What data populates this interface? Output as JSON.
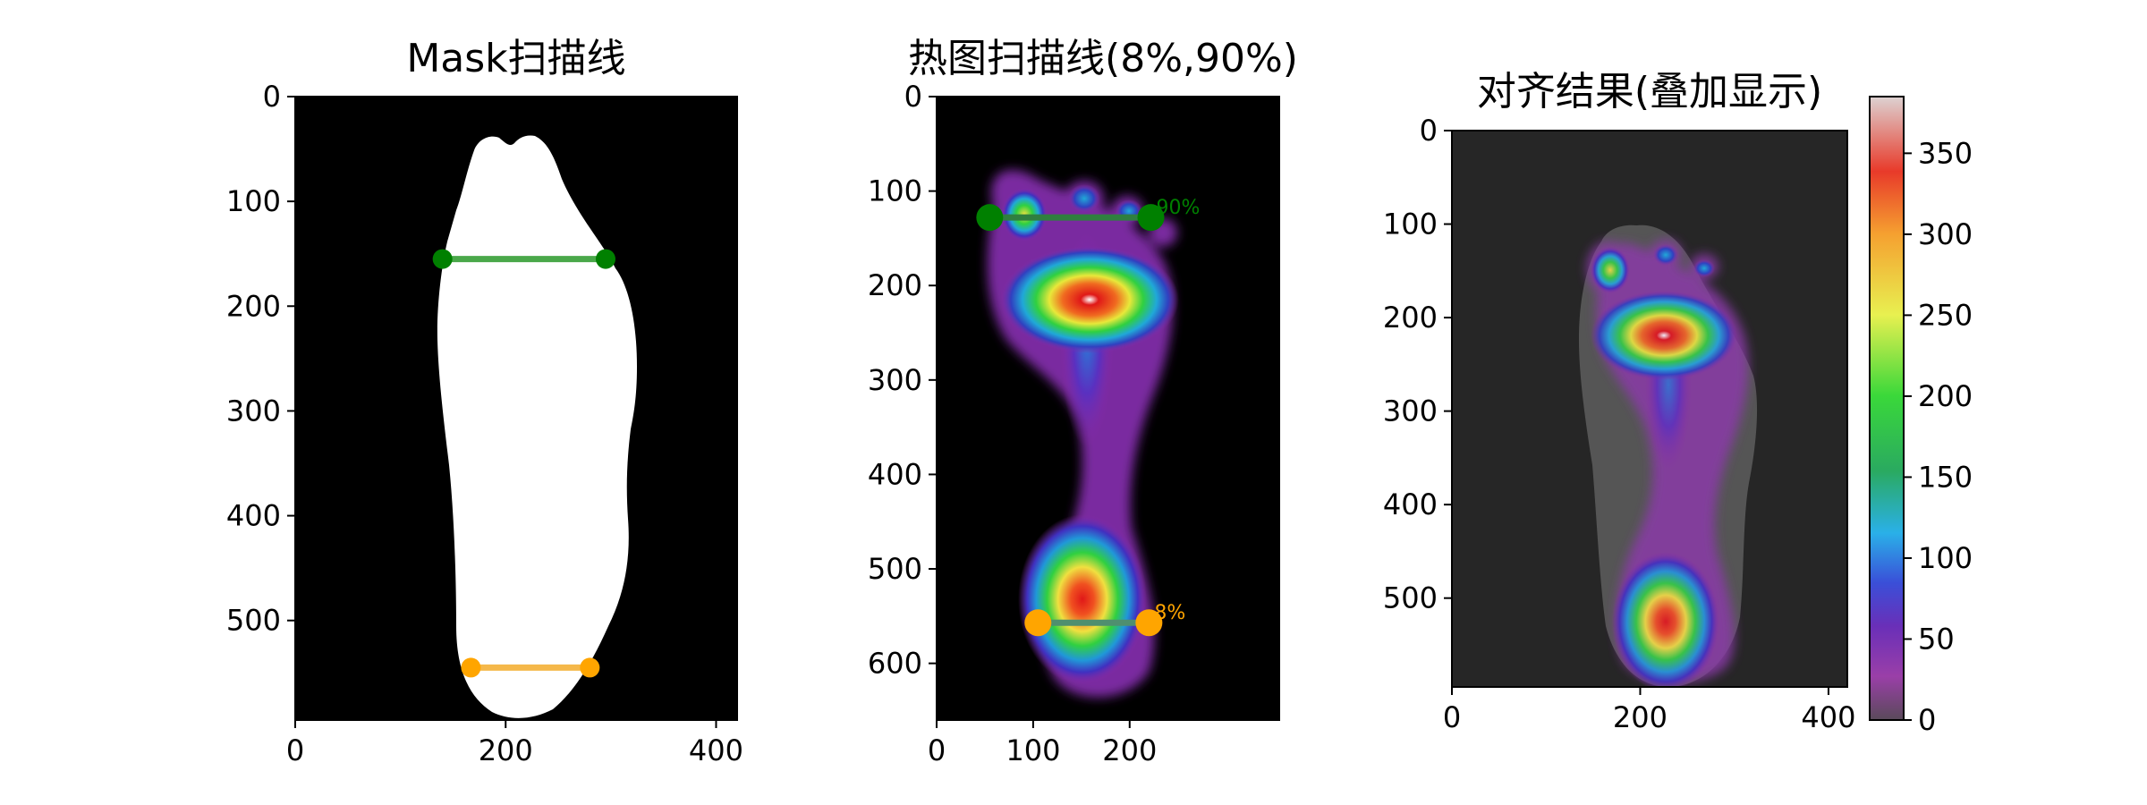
{
  "chart_data": [
    {
      "type": "heatmap",
      "title": "Mask扫描线",
      "xlim": [
        0,
        420
      ],
      "ylim": [
        595,
        0
      ],
      "xticks": [
        0,
        200,
        400
      ],
      "yticks": [
        0,
        100,
        200,
        300,
        400,
        500
      ],
      "background": "#000000",
      "foot_color": "#ffffff",
      "scan_lines": [
        {
          "x1": 140,
          "x2": 295,
          "y": 155,
          "color": "#008000",
          "line_color": "#4aa84a"
        },
        {
          "x1": 167,
          "x2": 280,
          "y": 545,
          "color": "#ffa500",
          "line_color": "#f5b84a"
        }
      ]
    },
    {
      "type": "heatmap",
      "title": "热图扫描线(8%,90%)",
      "xlim": [
        0,
        355
      ],
      "ylim": [
        660,
        0
      ],
      "xticks": [
        0,
        100,
        200
      ],
      "yticks": [
        0,
        100,
        200,
        300,
        400,
        500,
        600
      ],
      "background": "#000000",
      "scan_lines": [
        {
          "x1": 55,
          "x2": 222,
          "y": 128,
          "label": "90%",
          "color": "#008000",
          "line_color": "#2f7f3f"
        },
        {
          "x1": 105,
          "x2": 220,
          "y": 557,
          "label": "8%",
          "color": "#ffa500",
          "line_color": "#4f8f6f"
        }
      ]
    },
    {
      "type": "heatmap",
      "title": "对齐结果(叠加显示)",
      "xlim": [
        0,
        420
      ],
      "ylim": [
        595,
        0
      ],
      "xticks": [
        0,
        200,
        400
      ],
      "yticks": [
        0,
        100,
        200,
        300,
        400,
        500
      ],
      "background": "#262626",
      "foot_color": "#555555",
      "colorbar": {
        "min": 0,
        "max": 385,
        "ticks": [
          0,
          50,
          100,
          150,
          200,
          250,
          300,
          350
        ]
      }
    }
  ]
}
